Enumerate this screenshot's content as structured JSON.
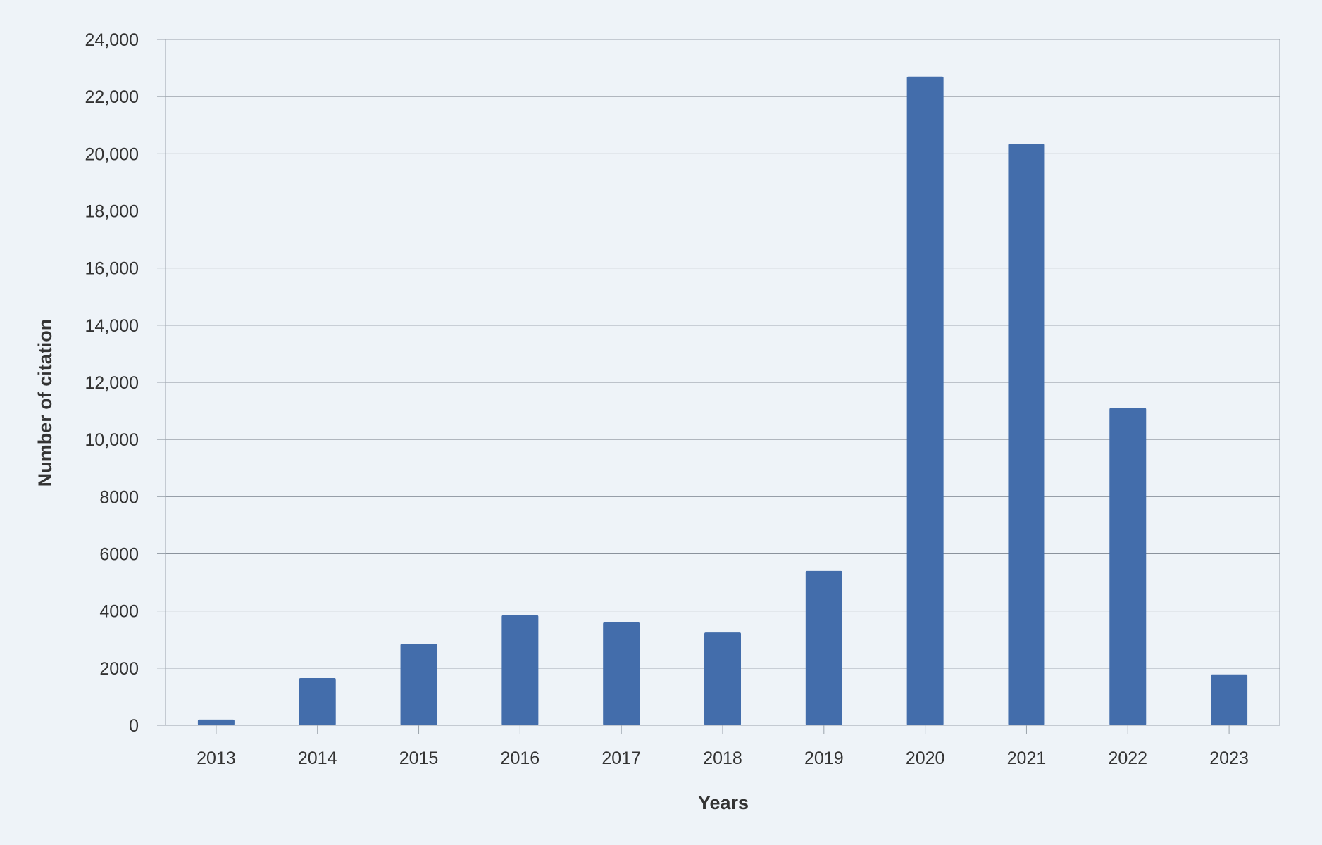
{
  "chart_data": {
    "type": "bar",
    "title": "",
    "xlabel": "Years",
    "ylabel": "Number of citation",
    "categories": [
      "2013",
      "2014",
      "2015",
      "2016",
      "2017",
      "2018",
      "2019",
      "2020",
      "2021",
      "2022",
      "2023"
    ],
    "values": [
      200,
      1650,
      2850,
      3850,
      3600,
      3250,
      5400,
      22700,
      20350,
      11100,
      1780
    ],
    "ylim": [
      0,
      24000
    ],
    "yticks": [
      0,
      2000,
      4000,
      6000,
      8000,
      10000,
      12000,
      14000,
      16000,
      18000,
      20000,
      22000,
      24000
    ],
    "ytick_labels": [
      "0",
      "2000",
      "4000",
      "6000",
      "8000",
      "10,000",
      "12,000",
      "14,000",
      "16,000",
      "18,000",
      "20,000",
      "22,000",
      "24,000"
    ],
    "grid": "horizontal",
    "legend": "none",
    "colors": {
      "bar": "#436dab",
      "grid": "#8a929c",
      "axis": "#9aa2ab",
      "background": "#eef3f8",
      "text": "#333333"
    }
  }
}
